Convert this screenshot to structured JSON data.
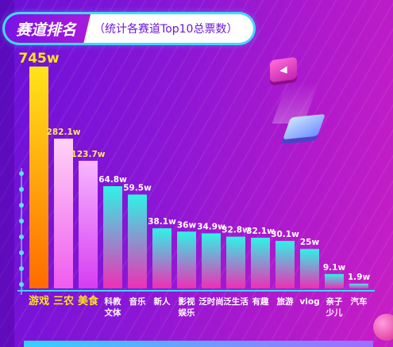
{
  "title": {
    "main": "赛道排名",
    "sub": "（统计各赛道Top10总票数）"
  },
  "chart_data": {
    "type": "bar",
    "categories": [
      "游戏",
      "三农",
      "美食",
      "科教文体",
      "音乐",
      "新人",
      "影视娱乐",
      "泛时尚",
      "泛生活",
      "有趣",
      "旅游",
      "vlog",
      "亲子少儿",
      "汽车"
    ],
    "category_lines": [
      [
        "游戏"
      ],
      [
        "三农"
      ],
      [
        "美食"
      ],
      [
        "科教",
        "文体"
      ],
      [
        "音乐"
      ],
      [
        "新人"
      ],
      [
        "影视",
        "娱乐"
      ],
      [
        "泛时尚"
      ],
      [
        "泛生活"
      ],
      [
        "有趣"
      ],
      [
        "旅游"
      ],
      [
        "vlog"
      ],
      [
        "亲子",
        "少儿"
      ],
      [
        "汽车"
      ]
    ],
    "values": [
      745,
      282.1,
      123.7,
      64.8,
      59.5,
      38.1,
      36,
      34.9,
      32.8,
      32.1,
      30.1,
      25,
      9.1,
      1.9
    ],
    "value_labels": [
      "745w",
      "282.1w",
      "123.7w",
      "64.8w",
      "59.5w",
      "38.1w",
      "36w",
      "34.9w",
      "32.8w",
      "32.1w",
      "30.1w",
      "25w",
      "9.1w",
      "1.9w"
    ],
    "unit": "w",
    "colors": {
      "top1_top": "#ffe41a",
      "top1_bottom": "#ff6a00",
      "top2_top": "#ffd2f6",
      "top2_bottom": "#ef5bf0",
      "top3_top": "#f8b6ff",
      "top3_bottom": "#d63cf2",
      "rest_top": "#2ff3e6",
      "rest_bottom": "#ee2fb5",
      "label_top1": "#ffe41a",
      "label_top3": "#ffe56b",
      "label_rest": "#ffffff",
      "cat_top3": "#ffe41a",
      "cat_rest": "#ffffff"
    }
  }
}
